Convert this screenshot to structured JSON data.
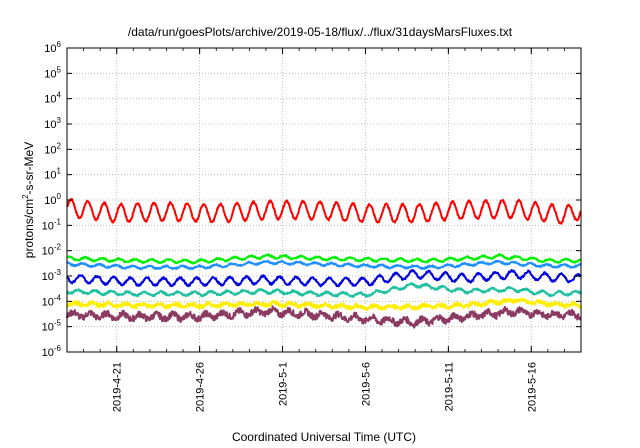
{
  "chart_data": {
    "type": "line",
    "title": "/data/run/goesPlots/archive/2019-05-18/flux/../flux/31daysMarsFluxes.txt",
    "xlabel": "Coordinated Universal Time (UTC)",
    "ylabel": {
      "pre": "protons/cm",
      "sup": "2",
      "post": "-s-sr-MeV"
    },
    "y_scale": "log",
    "ylim": [
      1e-06,
      1000000.0
    ],
    "y_ticks": [
      {
        "base": "10",
        "exp": "6",
        "value": 1000000.0
      },
      {
        "base": "10",
        "exp": "5",
        "value": 100000.0
      },
      {
        "base": "10",
        "exp": "4",
        "value": 10000.0
      },
      {
        "base": "10",
        "exp": "3",
        "value": 1000.0
      },
      {
        "base": "10",
        "exp": "2",
        "value": 100.0
      },
      {
        "base": "10",
        "exp": "1",
        "value": 10.0
      },
      {
        "base": "10",
        "exp": "0",
        "value": 1
      },
      {
        "base": "10",
        "exp": "-1",
        "value": 0.1
      },
      {
        "base": "10",
        "exp": "-2",
        "value": 0.01
      },
      {
        "base": "10",
        "exp": "-3",
        "value": 0.001
      },
      {
        "base": "10",
        "exp": "-4",
        "value": 0.0001
      },
      {
        "base": "10",
        "exp": "-5",
        "value": 1e-05
      },
      {
        "base": "10",
        "exp": "-6",
        "value": 1e-06
      }
    ],
    "xlim": [
      "2019-04-18",
      "2019-05-19"
    ],
    "x_ticks": [
      "2019-4-21",
      "2019-4-26",
      "2019-5-1",
      "2019-5-6",
      "2019-5-11",
      "2019-5-16"
    ],
    "grid": true,
    "series": [
      {
        "color": "#ff0000",
        "x": [
          "2019-04-18",
          "2019-04-21",
          "2019-04-24",
          "2019-04-27",
          "2019-04-30",
          "2019-05-03",
          "2019-05-06",
          "2019-05-09",
          "2019-05-12",
          "2019-05-15",
          "2019-05-18",
          "2019-05-19"
        ],
        "values": [
          0.5,
          0.3,
          0.35,
          0.3,
          0.4,
          0.4,
          0.3,
          0.3,
          0.4,
          0.45,
          0.25,
          0.4
        ]
      },
      {
        "color": "#00ee00",
        "x": [
          "2019-04-18",
          "2019-04-22",
          "2019-04-26",
          "2019-04-30",
          "2019-05-03",
          "2019-05-06",
          "2019-05-10",
          "2019-05-14",
          "2019-05-17",
          "2019-05-19"
        ],
        "values": [
          0.005,
          0.004,
          0.0038,
          0.006,
          0.005,
          0.0045,
          0.004,
          0.006,
          0.004,
          0.004
        ]
      },
      {
        "color": "#1e90ff",
        "x": [
          "2019-04-18",
          "2019-04-22",
          "2019-04-26",
          "2019-04-30",
          "2019-05-03",
          "2019-05-06",
          "2019-05-10",
          "2019-05-14",
          "2019-05-17",
          "2019-05-19"
        ],
        "values": [
          0.003,
          0.0022,
          0.0022,
          0.0035,
          0.003,
          0.0025,
          0.0022,
          0.0035,
          0.0025,
          0.0025
        ]
      },
      {
        "color": "#0000dd",
        "x": [
          "2019-04-18",
          "2019-04-22",
          "2019-04-26",
          "2019-04-30",
          "2019-05-03",
          "2019-05-06",
          "2019-05-09",
          "2019-05-12",
          "2019-05-15",
          "2019-05-17",
          "2019-05-19"
        ],
        "values": [
          0.0008,
          0.0006,
          0.0006,
          0.0007,
          0.0006,
          0.0006,
          0.0012,
          0.0008,
          0.0012,
          0.0009,
          0.0008
        ]
      },
      {
        "color": "#20c0a0",
        "x": [
          "2019-04-18",
          "2019-04-22",
          "2019-04-26",
          "2019-04-30",
          "2019-05-03",
          "2019-05-06",
          "2019-05-09",
          "2019-05-12",
          "2019-05-15",
          "2019-05-17",
          "2019-05-19"
        ],
        "values": [
          0.00025,
          0.0002,
          0.0002,
          0.00025,
          0.0002,
          0.00018,
          0.00045,
          0.00025,
          0.0003,
          0.0002,
          0.00022
        ]
      },
      {
        "color": "#ffee00",
        "x": [
          "2019-04-18",
          "2019-04-22",
          "2019-04-26",
          "2019-04-30",
          "2019-05-03",
          "2019-05-06",
          "2019-05-09",
          "2019-05-12",
          "2019-05-15",
          "2019-05-17",
          "2019-05-19"
        ],
        "values": [
          8e-05,
          7e-05,
          7e-05,
          8e-05,
          7e-05,
          6e-05,
          6e-05,
          7e-05,
          0.00011,
          8e-05,
          7e-05
        ]
      },
      {
        "color": "#8b3a62",
        "x": [
          "2019-04-18",
          "2019-04-22",
          "2019-04-26",
          "2019-04-30",
          "2019-05-03",
          "2019-05-06",
          "2019-05-09",
          "2019-05-12",
          "2019-05-15",
          "2019-05-17",
          "2019-05-19"
        ],
        "values": [
          3e-05,
          2.5e-05,
          2.5e-05,
          4e-05,
          3e-05,
          2e-05,
          1.5e-05,
          2.5e-05,
          4e-05,
          3e-05,
          3e-05
        ]
      }
    ]
  }
}
